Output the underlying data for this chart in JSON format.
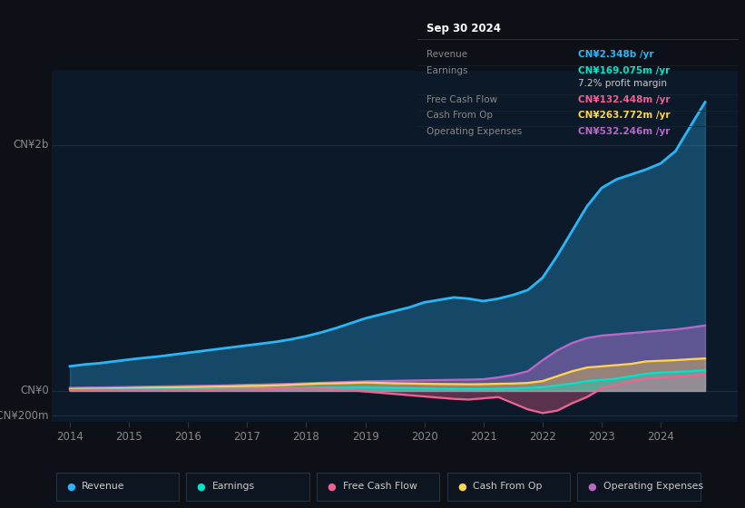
{
  "bg_color": "#0d1117",
  "plot_bg_color": "#0c1929",
  "title_box": {
    "date": "Sep 30 2024",
    "rows": [
      {
        "label": "Revenue",
        "value": "CN¥2.348b /yr",
        "value_color": "#29b6f6"
      },
      {
        "label": "Earnings",
        "value": "CN¥169.075m /yr",
        "value_color": "#00e5cc"
      },
      {
        "label": "",
        "value": "7.2% profit margin",
        "value_color": "#cccccc"
      },
      {
        "label": "Free Cash Flow",
        "value": "CN¥132.448m /yr",
        "value_color": "#f06292"
      },
      {
        "label": "Cash From Op",
        "value": "CN¥263.772m /yr",
        "value_color": "#ffd54f"
      },
      {
        "label": "Operating Expenses",
        "value": "CN¥532.246m /yr",
        "value_color": "#ba68c8"
      }
    ]
  },
  "years": [
    2014.0,
    2014.25,
    2014.5,
    2014.75,
    2015.0,
    2015.25,
    2015.5,
    2015.75,
    2016.0,
    2016.25,
    2016.5,
    2016.75,
    2017.0,
    2017.25,
    2017.5,
    2017.75,
    2018.0,
    2018.25,
    2018.5,
    2018.75,
    2019.0,
    2019.25,
    2019.5,
    2019.75,
    2020.0,
    2020.25,
    2020.5,
    2020.75,
    2021.0,
    2021.25,
    2021.5,
    2021.75,
    2022.0,
    2022.25,
    2022.5,
    2022.75,
    2023.0,
    2023.25,
    2023.5,
    2023.75,
    2024.0,
    2024.25,
    2024.5,
    2024.75
  ],
  "revenue": [
    200,
    215,
    225,
    240,
    255,
    268,
    280,
    295,
    310,
    325,
    340,
    355,
    370,
    385,
    400,
    420,
    445,
    475,
    510,
    550,
    590,
    620,
    650,
    680,
    720,
    740,
    760,
    750,
    730,
    750,
    780,
    820,
    920,
    1100,
    1300,
    1500,
    1650,
    1720,
    1760,
    1800,
    1850,
    1950,
    2150,
    2348
  ],
  "earnings": [
    8,
    9,
    10,
    11,
    12,
    13,
    14,
    15,
    16,
    17,
    18,
    19,
    20,
    21,
    22,
    23,
    24,
    25,
    26,
    27,
    28,
    26,
    24,
    22,
    20,
    18,
    16,
    15,
    16,
    18,
    20,
    25,
    30,
    45,
    60,
    80,
    90,
    100,
    120,
    140,
    150,
    155,
    160,
    169
  ],
  "free_cash_flow": [
    5,
    6,
    7,
    6,
    7,
    8,
    7,
    8,
    8,
    9,
    9,
    10,
    10,
    12,
    14,
    16,
    18,
    15,
    10,
    5,
    -5,
    -15,
    -25,
    -35,
    -45,
    -55,
    -65,
    -70,
    -60,
    -50,
    -100,
    -150,
    -180,
    -160,
    -100,
    -50,
    20,
    50,
    80,
    100,
    110,
    115,
    125,
    132
  ],
  "cash_from_op": [
    15,
    17,
    18,
    20,
    22,
    24,
    26,
    28,
    30,
    32,
    35,
    37,
    40,
    42,
    45,
    50,
    55,
    60,
    62,
    65,
    68,
    65,
    62,
    60,
    58,
    56,
    55,
    54,
    55,
    58,
    60,
    65,
    80,
    120,
    160,
    190,
    200,
    210,
    220,
    240,
    245,
    250,
    258,
    264
  ],
  "operating_expenses": [
    25,
    27,
    28,
    30,
    32,
    34,
    36,
    38,
    40,
    42,
    44,
    46,
    50,
    52,
    55,
    58,
    62,
    66,
    70,
    74,
    78,
    80,
    82,
    84,
    86,
    88,
    90,
    92,
    95,
    110,
    130,
    160,
    250,
    330,
    390,
    430,
    450,
    460,
    470,
    480,
    490,
    500,
    515,
    532
  ],
  "revenue_color": "#29b6f6",
  "earnings_color": "#00e5cc",
  "fcf_color": "#f06292",
  "cash_from_op_color": "#ffd54f",
  "op_exp_color": "#ba68c8",
  "ylim": [
    -250,
    2600
  ],
  "ytick_vals": [
    -200,
    0,
    2000
  ],
  "ytick_labels": [
    "-CN¥200m",
    "CN¥0",
    "CN¥2b"
  ],
  "xlim": [
    2013.7,
    2025.3
  ],
  "xticks": [
    2014,
    2015,
    2016,
    2017,
    2018,
    2019,
    2020,
    2021,
    2022,
    2023,
    2024
  ],
  "gridline_color": "#1e2d3d",
  "legend_items": [
    {
      "label": "Revenue",
      "color": "#29b6f6",
      "marker": "o"
    },
    {
      "label": "Earnings",
      "color": "#00e5cc",
      "marker": "o"
    },
    {
      "label": "Free Cash Flow",
      "color": "#f06292",
      "marker": "o"
    },
    {
      "label": "Cash From Op",
      "color": "#ffd54f",
      "marker": "o"
    },
    {
      "label": "Operating Expenses",
      "color": "#ba68c8",
      "marker": "o"
    }
  ]
}
